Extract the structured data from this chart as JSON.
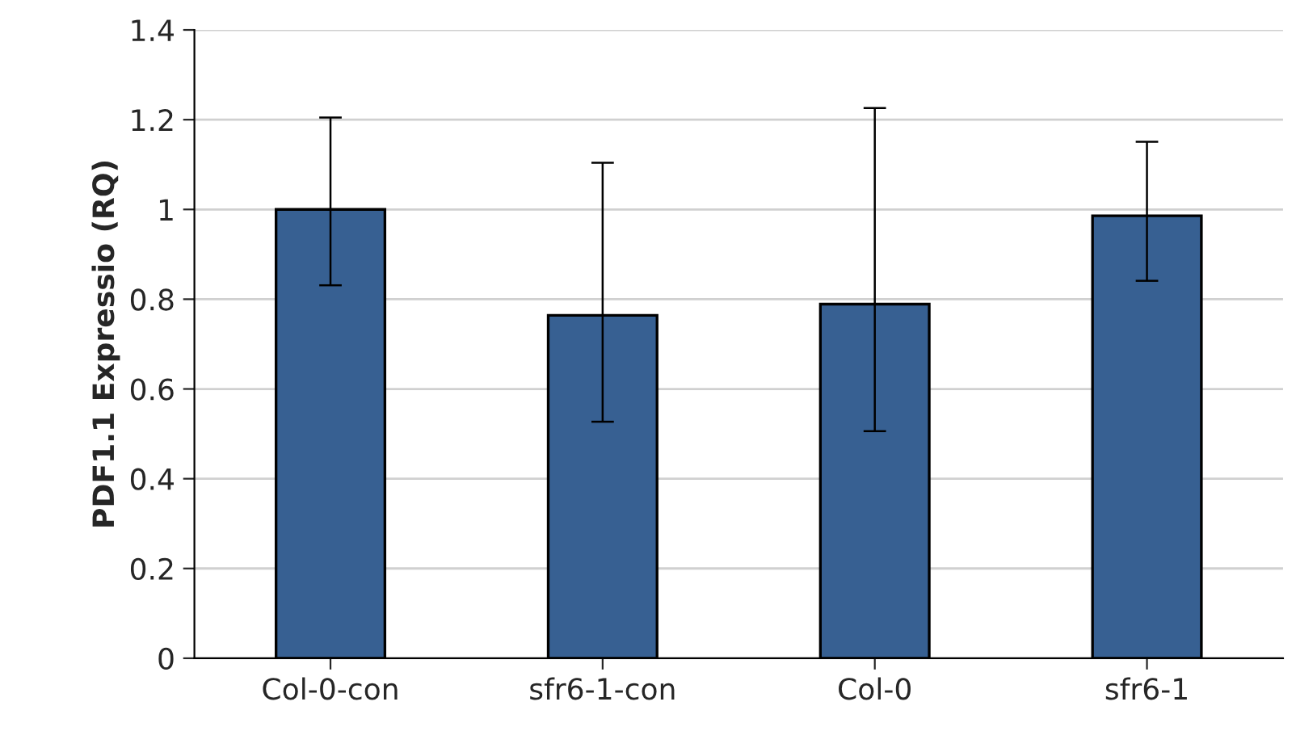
{
  "chart_data": {
    "type": "bar",
    "ylabel": "PDF1.1 Expressio (RQ)",
    "categories": [
      "Col-0-con",
      "sfr6-1-con",
      "Col-0",
      "sfr6-1"
    ],
    "values": [
      1.0,
      0.764,
      0.789,
      0.986
    ],
    "errors": [
      [
        0.831,
        1.205
      ],
      [
        0.527,
        1.104
      ],
      [
        0.506,
        1.226
      ],
      [
        0.841,
        1.151
      ]
    ],
    "color": "#376092",
    "ylim": [
      0,
      1.4
    ],
    "yticks": [
      0,
      0.2,
      0.4,
      0.6,
      0.8,
      1,
      1.2,
      1.4
    ],
    "grid": "y"
  }
}
